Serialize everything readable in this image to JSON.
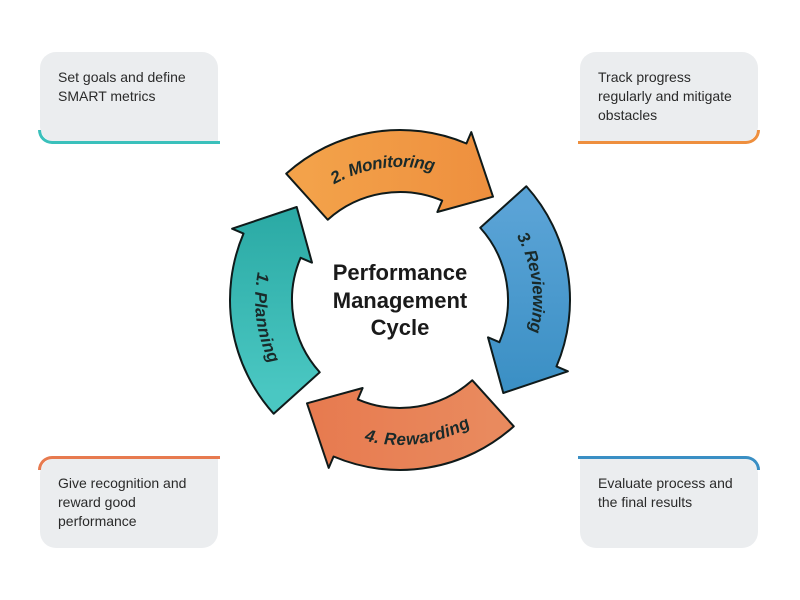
{
  "diagram": {
    "type": "cycle_infographic",
    "title": "Performance\nManagement\nCycle",
    "title_fontsize": 22,
    "title_color": "#1a1a1a",
    "background_color": "#ffffff",
    "ring": {
      "outer_radius": 170,
      "inner_radius": 108,
      "stroke_color": "#0f1a1a",
      "stroke_width": 2,
      "gap_deg": 6
    },
    "segments": [
      {
        "id": "planning",
        "label": "1. Planning",
        "color": "#4ac7c2",
        "gradient_to": "#2aa9a4",
        "arrowhead_color": "#2aa9a4",
        "start_deg": 225,
        "callout": "tl"
      },
      {
        "id": "monitoring",
        "label": "2. Monitoring",
        "color": "#f3a24a",
        "gradient_to": "#ee8f3e",
        "arrowhead_color": "#ee8f3e",
        "start_deg": 315,
        "callout": "tr"
      },
      {
        "id": "reviewing",
        "label": "3. Reviewing",
        "color": "#5aa3d6",
        "gradient_to": "#3a8fc4",
        "arrowhead_color": "#3a8fc4",
        "start_deg": 45,
        "callout": "br"
      },
      {
        "id": "rewarding",
        "label": "4. Rewarding",
        "color": "#e98a5e",
        "gradient_to": "#e77a4f",
        "arrowhead_color": "#e77a4f",
        "start_deg": 135,
        "callout": "bl"
      }
    ],
    "segment_label_fontsize": 17,
    "segment_label_style": "italic bold",
    "segment_label_color": "#1a2a2a"
  },
  "callouts": {
    "tl": {
      "text": "Set goals and define SMART metrics",
      "accent_color": "#3ac0bb"
    },
    "tr": {
      "text": "Track progress regularly and mitigate obstacles",
      "accent_color": "#ee8f3e"
    },
    "br": {
      "text": "Evaluate process and the final results",
      "accent_color": "#3a8fc4"
    },
    "bl": {
      "text": "Give recognition and reward good performance",
      "accent_color": "#e77a4f"
    },
    "box_color": "#ebedef",
    "text_color": "#2a2a2a",
    "fontsize": 14,
    "width": 178,
    "height": 90,
    "border_radius": 16
  }
}
